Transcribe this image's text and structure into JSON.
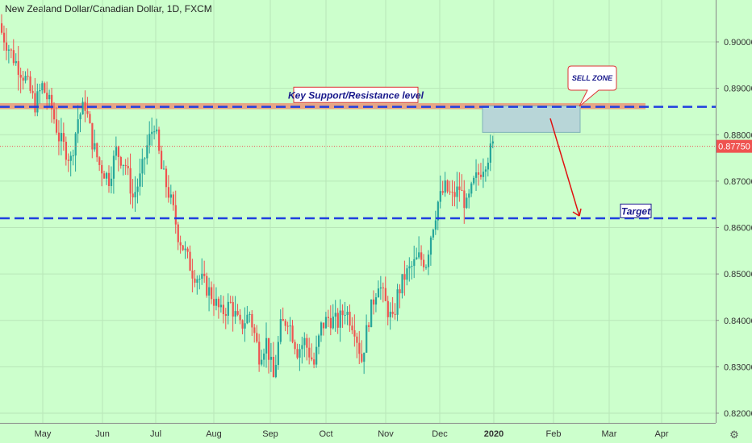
{
  "header": {
    "title": "New Zealand Dollar/Canadian Dollar, 1D, FXCM"
  },
  "chart_data": {
    "type": "candlestick",
    "title": "New Zealand Dollar/Canadian Dollar, 1D, FXCM",
    "symbol": "NZDCAD",
    "interval": "1D",
    "source": "FXCM",
    "x_labels": [
      "May",
      "Jun",
      "Jul",
      "Aug",
      "Sep",
      "Oct",
      "Nov",
      "Dec",
      "2020",
      "Feb",
      "Mar",
      "Apr"
    ],
    "y_ticks": [
      "0.90000",
      "0.89000",
      "0.88000",
      "0.87000",
      "0.86000",
      "0.85000",
      "0.84000",
      "0.83000",
      "0.82000"
    ],
    "ylim": [
      0.8195,
      0.907
    ],
    "last_price": "0.87750",
    "up_color": "#26a69a",
    "down_color": "#ef5350",
    "price_path": [
      [
        0,
        0.902
      ],
      [
        5,
        0.8965
      ],
      [
        10,
        0.892
      ],
      [
        14,
        0.8865
      ],
      [
        17,
        0.8905
      ],
      [
        21,
        0.8855
      ],
      [
        24,
        0.8795
      ],
      [
        29,
        0.8745
      ],
      [
        32,
        0.8835
      ],
      [
        35,
        0.8865
      ],
      [
        38,
        0.8785
      ],
      [
        41,
        0.8735
      ],
      [
        45,
        0.8705
      ],
      [
        48,
        0.8765
      ],
      [
        52,
        0.8735
      ],
      [
        55,
        0.8665
      ],
      [
        58,
        0.8705
      ],
      [
        61,
        0.8775
      ],
      [
        64,
        0.8825
      ],
      [
        67,
        0.8725
      ],
      [
        70,
        0.8675
      ],
      [
        72,
        0.8635
      ],
      [
        74,
        0.8585
      ],
      [
        77,
        0.8545
      ],
      [
        80,
        0.8505
      ],
      [
        84,
        0.8485
      ],
      [
        88,
        0.8455
      ],
      [
        92,
        0.8415
      ],
      [
        96,
        0.8435
      ],
      [
        100,
        0.8385
      ],
      [
        104,
        0.8415
      ],
      [
        108,
        0.8325
      ],
      [
        111,
        0.8355
      ],
      [
        114,
        0.8275
      ],
      [
        117,
        0.8385
      ],
      [
        120,
        0.8405
      ],
      [
        124,
        0.8335
      ],
      [
        127,
        0.8355
      ],
      [
        131,
        0.8305
      ],
      [
        134,
        0.8385
      ],
      [
        137,
        0.8405
      ],
      [
        141,
        0.8395
      ],
      [
        144,
        0.8425
      ],
      [
        148,
        0.8385
      ],
      [
        151,
        0.8315
      ],
      [
        154,
        0.8405
      ],
      [
        158,
        0.8485
      ],
      [
        161,
        0.8435
      ],
      [
        164,
        0.8395
      ],
      [
        166,
        0.8455
      ],
      [
        169,
        0.8495
      ],
      [
        172,
        0.8515
      ],
      [
        175,
        0.8535
      ],
      [
        178,
        0.8525
      ],
      [
        180,
        0.8585
      ],
      [
        183,
        0.8655
      ],
      [
        186,
        0.8685
      ],
      [
        189,
        0.8665
      ],
      [
        192,
        0.8685
      ],
      [
        195,
        0.8645
      ],
      [
        198,
        0.8695
      ],
      [
        201,
        0.8725
      ],
      [
        204,
        0.8755
      ],
      [
        206,
        0.8775
      ]
    ],
    "levels": [
      {
        "name": "resistance",
        "price": 0.886,
        "color": "#1f3fe0",
        "style": "dashed"
      },
      {
        "name": "target",
        "price": 0.862,
        "color": "#1f3fe0",
        "style": "dashed"
      }
    ],
    "resistance_band": {
      "from": 0.8855,
      "to": 0.8868,
      "color": "#e8a080"
    },
    "sell_zone_box": {
      "from": 0.8805,
      "to": 0.8862,
      "color": "#b8d6d8"
    },
    "current_price_line": {
      "price": 0.8775,
      "color": "#ef5350",
      "style": "dotted"
    },
    "annotations": {
      "resistance_label": "Key Support/Resistance level",
      "sell_zone_label": "SELL ZONE",
      "target_label": "Target"
    }
  }
}
